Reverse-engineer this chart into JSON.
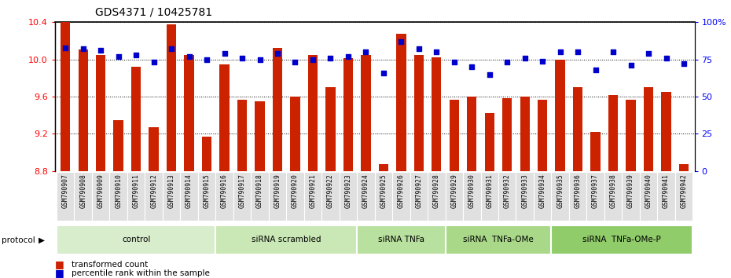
{
  "title": "GDS4371 / 10425781",
  "samples": [
    "GSM790907",
    "GSM790908",
    "GSM790909",
    "GSM790910",
    "GSM790911",
    "GSM790912",
    "GSM790913",
    "GSM790914",
    "GSM790915",
    "GSM790916",
    "GSM790917",
    "GSM790918",
    "GSM790919",
    "GSM790920",
    "GSM790921",
    "GSM790922",
    "GSM790923",
    "GSM790924",
    "GSM790925",
    "GSM790926",
    "GSM790927",
    "GSM790928",
    "GSM790929",
    "GSM790930",
    "GSM790931",
    "GSM790932",
    "GSM790933",
    "GSM790934",
    "GSM790935",
    "GSM790936",
    "GSM790937",
    "GSM790938",
    "GSM790939",
    "GSM790940",
    "GSM790941",
    "GSM790942"
  ],
  "transformed_count": [
    10.4,
    10.11,
    10.05,
    9.35,
    9.92,
    9.27,
    10.38,
    10.05,
    9.17,
    9.95,
    9.57,
    9.55,
    10.12,
    9.6,
    10.05,
    9.7,
    10.01,
    10.05,
    8.87,
    10.28,
    10.05,
    10.02,
    9.57,
    9.6,
    9.42,
    9.58,
    9.6,
    9.57,
    10.0,
    9.7,
    9.22,
    9.62,
    9.57,
    9.7,
    9.65,
    8.87
  ],
  "percentile_rank": [
    83,
    82,
    81,
    77,
    78,
    73,
    82,
    77,
    75,
    79,
    76,
    75,
    79,
    73,
    75,
    76,
    77,
    80,
    66,
    87,
    82,
    80,
    73,
    70,
    65,
    73,
    76,
    74,
    80,
    80,
    68,
    80,
    71,
    79,
    76,
    72
  ],
  "groups": [
    {
      "label": "control",
      "start": 0,
      "end": 9
    },
    {
      "label": "siRNA scrambled",
      "start": 9,
      "end": 17
    },
    {
      "label": "siRNA TNFa",
      "start": 17,
      "end": 22
    },
    {
      "label": "siRNA  TNFa-OMe",
      "start": 22,
      "end": 28
    },
    {
      "label": "siRNA  TNFa-OMe-P",
      "start": 28,
      "end": 36
    }
  ],
  "group_colors": [
    "#d8edcc",
    "#cae8b5",
    "#b8e09e",
    "#a8d888",
    "#90cc6a"
  ],
  "ylim_left": [
    8.8,
    10.4
  ],
  "ylim_right": [
    0,
    100
  ],
  "yticks_left": [
    8.8,
    9.2,
    9.6,
    10.0,
    10.4
  ],
  "yticks_right": [
    0,
    25,
    50,
    75,
    100
  ],
  "bar_color": "#cc2200",
  "scatter_color": "#0000cc",
  "bg_color": "#ffffff",
  "title_fontsize": 10,
  "legend_bar_label": "transformed count",
  "legend_scatter_label": "percentile rank within the sample"
}
